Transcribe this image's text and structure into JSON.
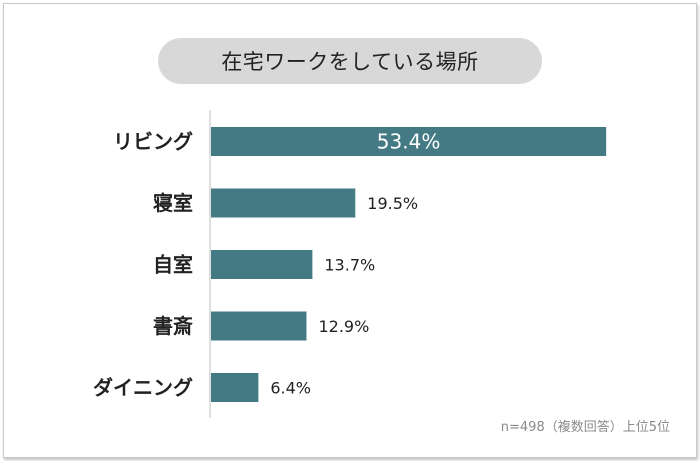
{
  "title": "在宅ワークをしている場所",
  "note": "n=498（複数回答）上位5位",
  "colors": {
    "bar": "#437a84",
    "axis": "#bfbfbf",
    "label": "#222222",
    "inside_label": "#ffffff"
  },
  "chart_data": {
    "type": "bar",
    "orientation": "horizontal",
    "title": "在宅ワークをしている場所",
    "categories": [
      "リビング",
      "寝室",
      "自室",
      "書斎",
      "ダイニング"
    ],
    "values": [
      53.4,
      19.5,
      13.7,
      12.9,
      6.4
    ],
    "value_labels": [
      "53.4%",
      "19.5%",
      "13.7%",
      "12.9%",
      "6.4%"
    ],
    "unit": "%",
    "xlim": [
      0,
      60
    ],
    "grid": false,
    "legend": "none"
  }
}
